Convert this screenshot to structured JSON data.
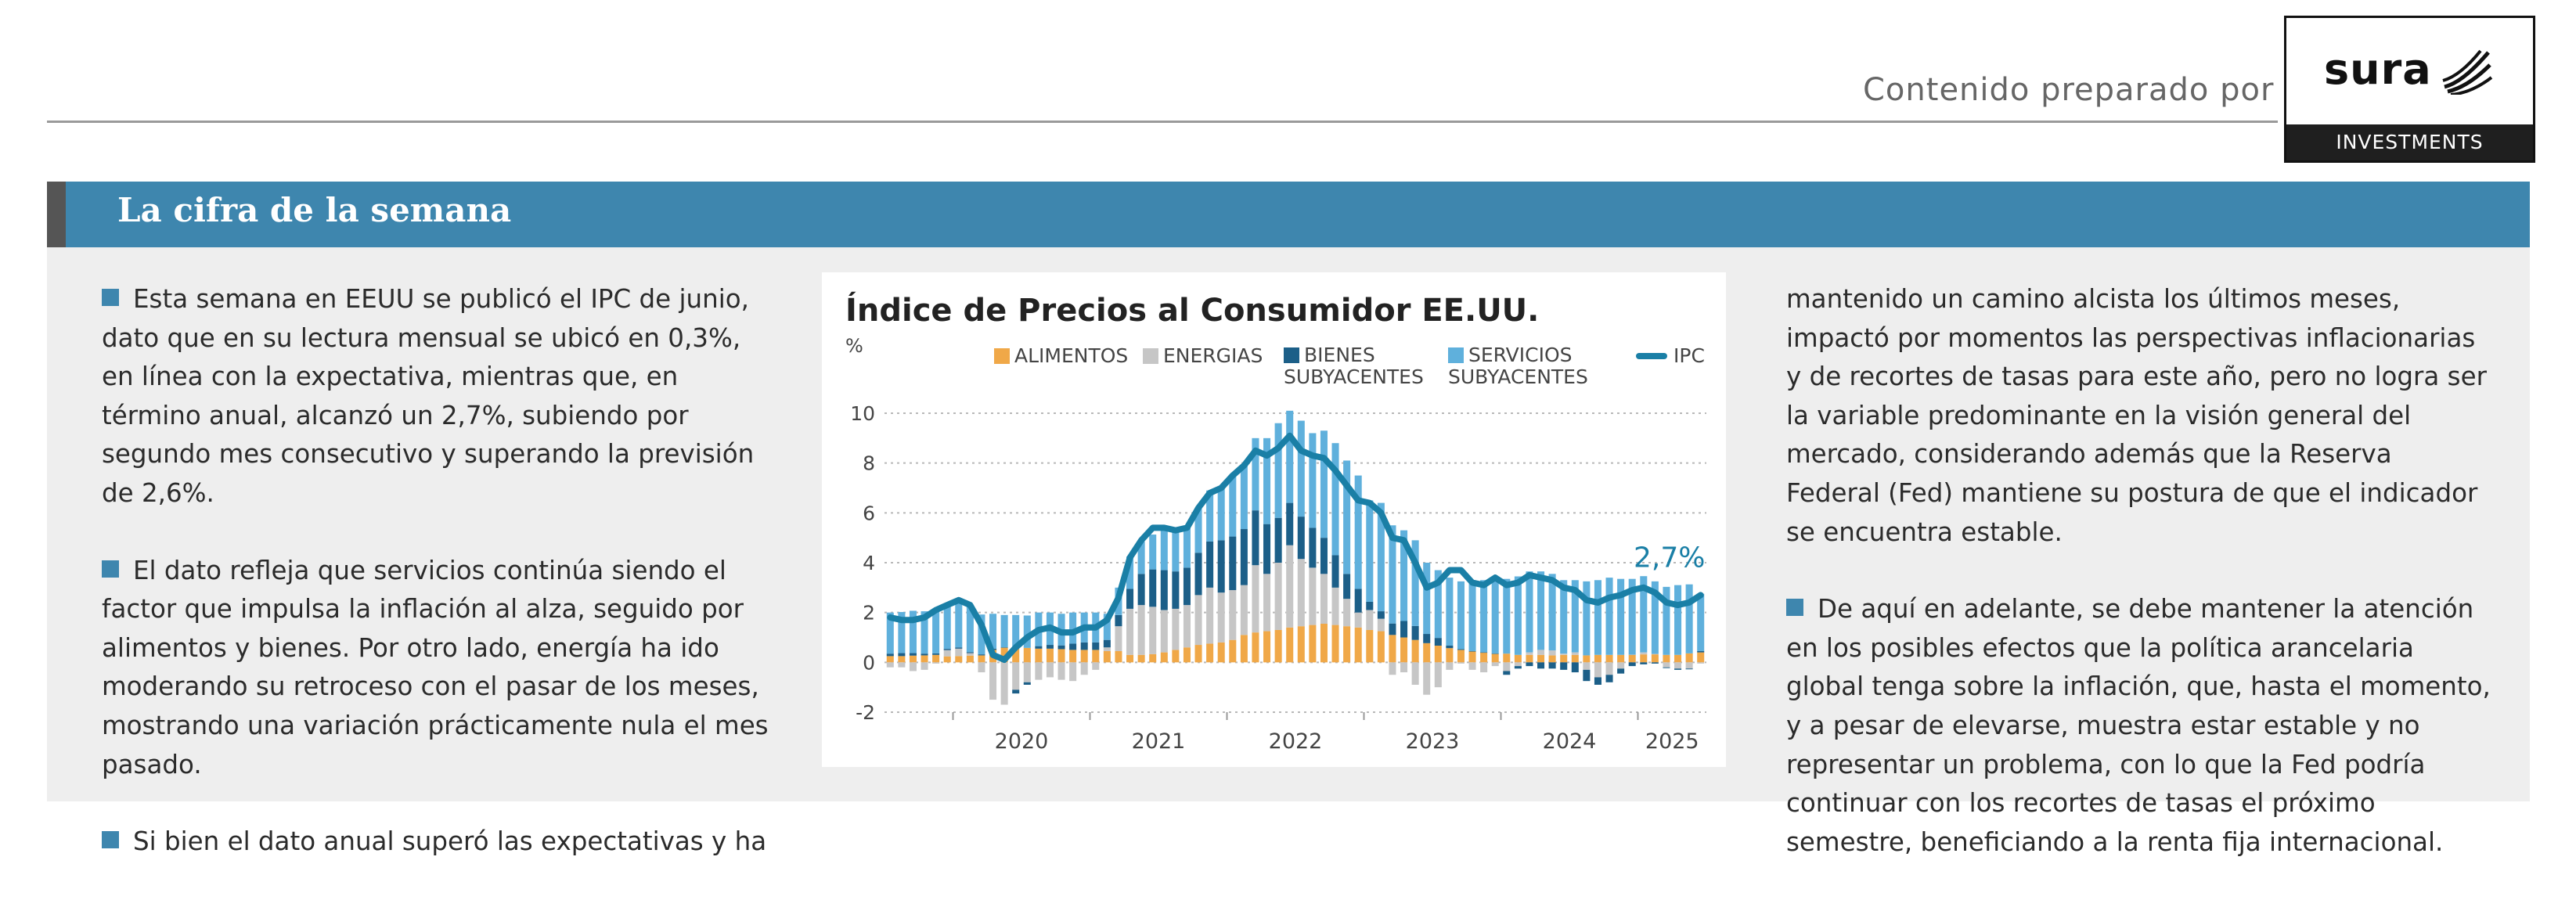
{
  "header": {
    "prepared_by": "Contenido preparado por",
    "logo_brand": "sura",
    "logo_sub": "INVESTMENTS"
  },
  "banner": {
    "title": "La cifra de la semana"
  },
  "left_column": {
    "paragraphs": [
      "Esta semana en EEUU se publicó el IPC de junio, dato que en su lectura mensual se ubicó en 0,3%, en línea con la expectativa, mientras que, en término anual, alcanzó un 2,7%, subiendo por segundo mes consecutivo y superando la previsión de 2,6%.",
      "El dato refleja que servicios continúa siendo el factor que impulsa la inflación al alza, seguido por alimentos y bienes. Por otro lado, energía ha ido moderando su retroceso con el pasar de los meses, mostrando una variación prácticamente nula el mes pasado.",
      "Si bien el dato anual superó las expectativas y ha"
    ]
  },
  "right_column": {
    "paragraphs": [
      "mantenido un camino alcista los últimos meses, impactó por momentos las perspectivas inflacionarias y de recortes de tasas para este año, pero no logra ser la variable predominante en la visión general del mercado, considerando además que la Reserva Federal (Fed) mantiene su postura de que el indicador se encuentra estable.",
      "De aquí en adelante, se debe mantener la atención en los posibles efectos que la política arancelaria global tenga sobre la inflación, que, hasta el momento, y a pesar de elevarse, muestra estar estable y no representar un problema, con lo que la Fed podría continuar con los recortes de tasas el próximo semestre, beneficiando a la renta fija internacional."
    ]
  },
  "colors": {
    "banner": "#3e86ae",
    "alimentos": "#f0a848",
    "energias": "#c6c6c6",
    "bienes": "#1c5f88",
    "servicios": "#5fb0dc",
    "ipc": "#1a7fa6"
  },
  "chart_data": {
    "type": "bar",
    "title": "Índice de Precios al Consumidor EE.UU.",
    "ylabel": "%",
    "ylim": [
      -2,
      10
    ],
    "y_ticks": [
      "10",
      "8",
      "6",
      "4",
      "2",
      "0",
      "-2"
    ],
    "x_tick_labels": [
      "2020",
      "2021",
      "2022",
      "2023",
      "2024",
      "2025"
    ],
    "stacked": true,
    "annotation": "2,7%",
    "legend": [
      {
        "label": "ALIMENTOS",
        "kind": "bar",
        "color": "#f0a848"
      },
      {
        "label": "ENERGIAS",
        "kind": "bar",
        "color": "#c6c6c6"
      },
      {
        "label": "BIENES\nSUBYACENTES",
        "kind": "bar",
        "color": "#1c5f88"
      },
      {
        "label": "SERVICIOS\nSUBYACENTES",
        "kind": "bar",
        "color": "#5fb0dc"
      },
      {
        "label": "IPC",
        "kind": "line",
        "color": "#1a7fa6"
      }
    ],
    "x": [
      "2019-07",
      "2019-08",
      "2019-09",
      "2019-10",
      "2019-11",
      "2019-12",
      "2020-01",
      "2020-02",
      "2020-03",
      "2020-04",
      "2020-05",
      "2020-06",
      "2020-07",
      "2020-08",
      "2020-09",
      "2020-10",
      "2020-11",
      "2020-12",
      "2021-01",
      "2021-02",
      "2021-03",
      "2021-04",
      "2021-05",
      "2021-06",
      "2021-07",
      "2021-08",
      "2021-09",
      "2021-10",
      "2021-11",
      "2021-12",
      "2022-01",
      "2022-02",
      "2022-03",
      "2022-04",
      "2022-05",
      "2022-06",
      "2022-07",
      "2022-08",
      "2022-09",
      "2022-10",
      "2022-11",
      "2022-12",
      "2023-01",
      "2023-02",
      "2023-03",
      "2023-04",
      "2023-05",
      "2023-06",
      "2023-07",
      "2023-08",
      "2023-09",
      "2023-10",
      "2023-11",
      "2023-12",
      "2024-01",
      "2024-02",
      "2024-03",
      "2024-04",
      "2024-05",
      "2024-06",
      "2024-07",
      "2024-08",
      "2024-09",
      "2024-10",
      "2024-11",
      "2024-12",
      "2025-01",
      "2025-02",
      "2025-03",
      "2025-04",
      "2025-05",
      "2025-06"
    ],
    "series": [
      {
        "name": "ALIMENTOS",
        "values": [
          0.25,
          0.25,
          0.27,
          0.28,
          0.3,
          0.24,
          0.25,
          0.27,
          0.28,
          0.5,
          0.6,
          0.6,
          0.58,
          0.55,
          0.55,
          0.53,
          0.5,
          0.5,
          0.5,
          0.45,
          0.45,
          0.3,
          0.3,
          0.33,
          0.4,
          0.5,
          0.6,
          0.7,
          0.75,
          0.8,
          0.9,
          1.1,
          1.2,
          1.25,
          1.3,
          1.4,
          1.45,
          1.5,
          1.55,
          1.5,
          1.45,
          1.4,
          1.3,
          1.25,
          1.1,
          1.0,
          0.9,
          0.77,
          0.67,
          0.57,
          0.5,
          0.45,
          0.4,
          0.35,
          0.35,
          0.3,
          0.3,
          0.3,
          0.28,
          0.3,
          0.3,
          0.28,
          0.3,
          0.3,
          0.3,
          0.31,
          0.32,
          0.32,
          0.3,
          0.3,
          0.36,
          0.4
        ]
      },
      {
        "name": "ENERGIAS",
        "values": [
          -0.2,
          -0.2,
          -0.35,
          -0.3,
          -0.05,
          0.25,
          0.3,
          0.1,
          -0.4,
          -1.5,
          -1.7,
          -1.1,
          -0.8,
          -0.7,
          -0.6,
          -0.7,
          -0.75,
          -0.5,
          -0.3,
          0.15,
          1.0,
          1.85,
          2.0,
          1.9,
          1.7,
          1.65,
          1.7,
          2.0,
          2.25,
          2.0,
          2.0,
          2.0,
          2.7,
          2.3,
          2.7,
          3.3,
          2.7,
          2.3,
          2.0,
          1.5,
          1.1,
          0.6,
          0.8,
          0.5,
          -0.5,
          -0.4,
          -0.9,
          -1.3,
          -1.0,
          -0.3,
          -0.05,
          -0.3,
          -0.4,
          -0.15,
          -0.35,
          -0.15,
          0.1,
          0.2,
          0.2,
          0.05,
          0.1,
          -0.3,
          -0.6,
          -0.5,
          -0.25,
          0.0,
          0.08,
          0.02,
          -0.2,
          -0.25,
          -0.25,
          -0.05
        ]
      },
      {
        "name": "BIENES SUBYACENTES",
        "values": [
          0.1,
          0.12,
          0.1,
          0.07,
          0.06,
          0.05,
          0.05,
          0.04,
          0.04,
          0.05,
          0.0,
          -0.15,
          -0.1,
          0.1,
          0.15,
          0.15,
          0.25,
          0.3,
          0.3,
          0.3,
          0.45,
          0.8,
          1.25,
          1.5,
          1.6,
          1.5,
          1.5,
          1.7,
          1.85,
          2.1,
          2.15,
          2.25,
          2.2,
          2.0,
          1.8,
          1.7,
          1.7,
          1.6,
          1.45,
          1.3,
          1.0,
          0.95,
          0.33,
          0.3,
          0.46,
          0.66,
          0.56,
          0.37,
          0.31,
          0.1,
          0.03,
          0.0,
          0.0,
          0.0,
          -0.15,
          -0.1,
          -0.15,
          -0.25,
          -0.25,
          -0.3,
          -0.4,
          -0.45,
          -0.3,
          -0.3,
          -0.2,
          -0.15,
          -0.08,
          -0.05,
          -0.03,
          -0.05,
          -0.03,
          0.05
        ]
      },
      {
        "name": "SERVICIOS SUBYACENTES",
        "values": [
          1.65,
          1.65,
          1.7,
          1.7,
          1.7,
          1.75,
          1.9,
          1.9,
          1.6,
          1.4,
          1.3,
          1.3,
          1.3,
          1.35,
          1.3,
          1.27,
          1.25,
          1.2,
          1.2,
          1.05,
          1.1,
          1.3,
          1.3,
          1.4,
          1.6,
          1.6,
          1.6,
          1.8,
          2.05,
          2.1,
          2.45,
          2.55,
          2.9,
          3.45,
          3.8,
          3.7,
          3.85,
          3.8,
          4.3,
          4.5,
          4.55,
          4.55,
          4.07,
          4.35,
          3.94,
          3.64,
          3.44,
          2.86,
          2.72,
          2.73,
          2.72,
          2.85,
          2.9,
          2.9,
          3.0,
          3.15,
          3.25,
          3.15,
          3.07,
          2.95,
          2.9,
          2.97,
          3.0,
          3.1,
          3.05,
          3.04,
          3.06,
          2.91,
          2.73,
          2.8,
          2.77,
          2.3
        ]
      },
      {
        "name": "IPC",
        "kind": "line",
        "values": [
          1.8,
          1.7,
          1.7,
          1.8,
          2.1,
          2.3,
          2.5,
          2.3,
          1.5,
          0.3,
          0.1,
          0.6,
          1.0,
          1.3,
          1.4,
          1.2,
          1.2,
          1.4,
          1.4,
          1.7,
          2.6,
          4.2,
          4.9,
          5.4,
          5.4,
          5.3,
          5.4,
          6.2,
          6.8,
          7.0,
          7.5,
          7.9,
          8.5,
          8.3,
          8.6,
          9.1,
          8.5,
          8.3,
          8.2,
          7.7,
          7.1,
          6.5,
          6.4,
          6.0,
          5.0,
          4.9,
          4.0,
          3.0,
          3.2,
          3.7,
          3.7,
          3.2,
          3.1,
          3.4,
          3.1,
          3.2,
          3.5,
          3.4,
          3.3,
          3.0,
          2.9,
          2.5,
          2.4,
          2.6,
          2.7,
          2.9,
          3.0,
          2.8,
          2.4,
          2.3,
          2.4,
          2.7
        ]
      }
    ]
  }
}
